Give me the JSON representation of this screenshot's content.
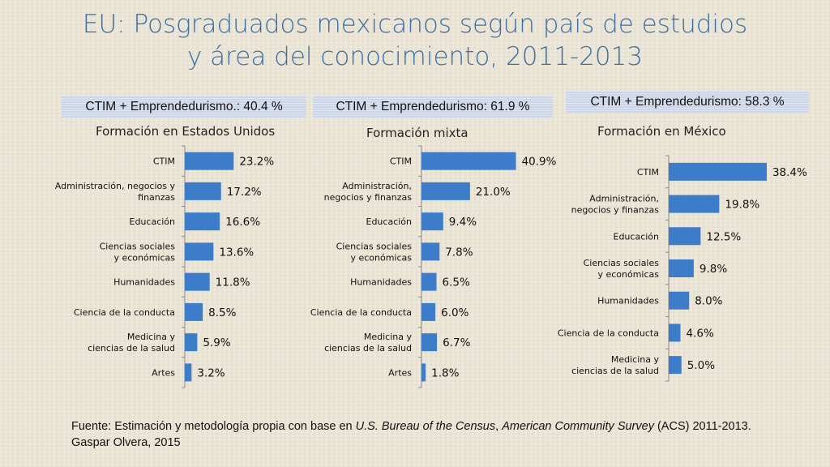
{
  "title_line1": "EU: Posgraduados mexicanos según país de estudios",
  "title_line2": "y área del conocimiento, 2011-2013",
  "source": {
    "prefix": "Fuente: Estimación y metodología propia con base en ",
    "italic1": "U.S. Bureau of the Census",
    "sep": ", ",
    "italic2": "American Community Survey",
    "suffix": " (ACS) 2011-2013. Gaspar Olvera, 2015"
  },
  "colors": {
    "bar": "#3d7cc9",
    "title": "#3a6fa8",
    "banner": "#cdd6e8"
  },
  "chart_data": [
    {
      "type": "bar",
      "orientation": "horizontal",
      "banner": "CTIM + Emprendedurismo.:  40.4 %",
      "title": "Formación en Estados Unidos",
      "categories": [
        [
          "CTIM"
        ],
        [
          "Administración, negocios y",
          "finanzas"
        ],
        [
          "Educación"
        ],
        [
          "Ciencias sociales",
          "y económicas"
        ],
        [
          "Humanidades"
        ],
        [
          "Ciencia de la conducta"
        ],
        [
          "Medicina y",
          "ciencias de la salud"
        ],
        [
          "Artes"
        ]
      ],
      "values": [
        23.2,
        17.2,
        16.6,
        13.6,
        11.8,
        8.5,
        5.9,
        3.2
      ],
      "labels": [
        "23.2%",
        "17.2%",
        "16.6%",
        "13.6%",
        "11.8%",
        "8.5%",
        "5.9%",
        "3.2%"
      ]
    },
    {
      "type": "bar",
      "orientation": "horizontal",
      "banner": "CTIM + Emprendedurismo:  61.9 %",
      "title": "Formación mixta",
      "categories": [
        [
          "CTIM"
        ],
        [
          "Administración,",
          "negocios y finanzas"
        ],
        [
          "Educación"
        ],
        [
          "Ciencias sociales",
          "y económicas"
        ],
        [
          "Humanidades"
        ],
        [
          "Ciencia de la conducta"
        ],
        [
          "Medicina y",
          "ciencias de la salud"
        ],
        [
          "Artes"
        ]
      ],
      "values": [
        40.9,
        21.0,
        9.4,
        7.8,
        6.5,
        6.0,
        6.7,
        1.8
      ],
      "labels": [
        "40.9%",
        "21.0%",
        "9.4%",
        "7.8%",
        "6.5%",
        "6.0%",
        "6.7%",
        "1.8%"
      ]
    },
    {
      "type": "bar",
      "orientation": "horizontal",
      "banner": "CTIM + Emprendedurismo:  58.3 %",
      "title": "Formación en México",
      "categories": [
        [
          "CTIM"
        ],
        [
          "Administración,",
          "negocios y finanzas"
        ],
        [
          "Educación"
        ],
        [
          "Ciencias sociales",
          "y económicas"
        ],
        [
          "Humanidades"
        ],
        [
          "Ciencia de la conducta"
        ],
        [
          "Medicina y",
          "ciencias de la salud"
        ]
      ],
      "values": [
        38.4,
        19.8,
        12.5,
        9.8,
        8.0,
        4.6,
        5.0
      ],
      "labels": [
        "38.4%",
        "19.8%",
        "12.5%",
        "9.8%",
        "8.0%",
        "4.6%",
        "5.0%"
      ]
    }
  ]
}
